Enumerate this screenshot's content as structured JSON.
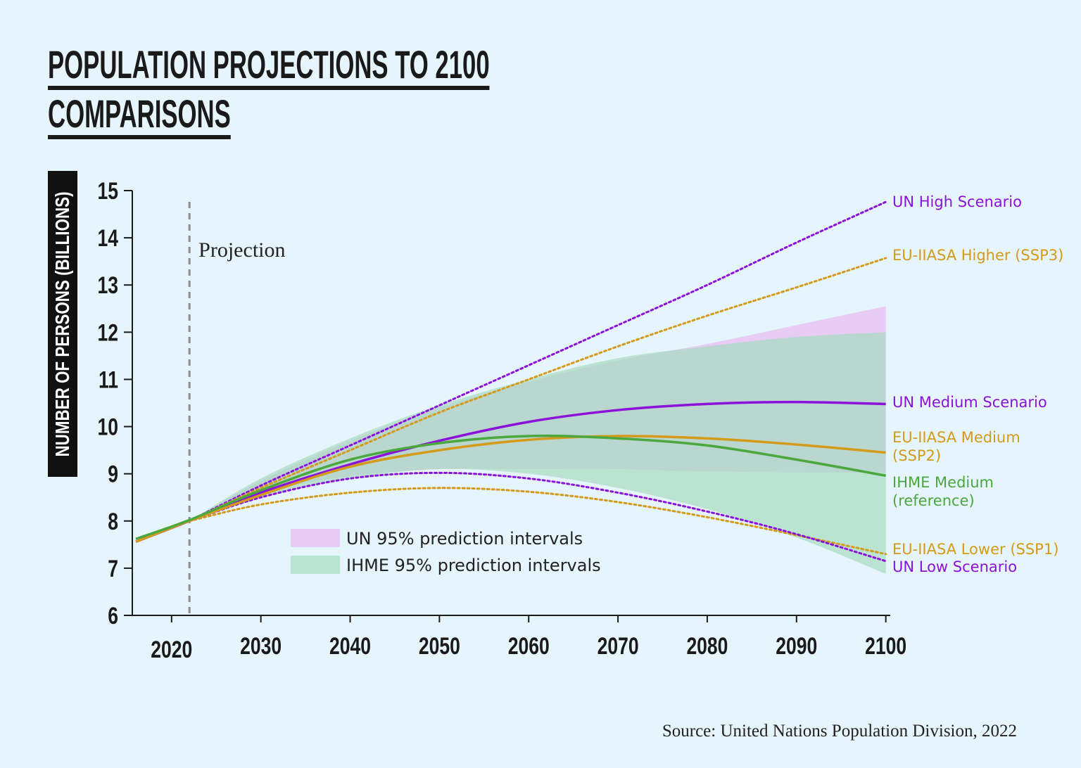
{
  "chart_data": {
    "type": "line",
    "title_lines": [
      "POPULATION PROJECTIONS TO 2100",
      "COMPARISONS"
    ],
    "y_label": "NUMBER OF PERSONS (BILLIONS)",
    "annotation": "Projection",
    "projection_start": 2022,
    "source": "Source: United Nations Population Division, 2022",
    "x": [
      2016,
      2022,
      2030,
      2040,
      2050,
      2060,
      2070,
      2080,
      2090,
      2100
    ],
    "xlim": [
      2015.6,
      2100.5
    ],
    "xticks": [
      2020,
      2030,
      2040,
      2050,
      2060,
      2070,
      2080,
      2090,
      2100
    ],
    "ylim": [
      6,
      15
    ],
    "yticks": [
      6,
      7,
      8,
      9,
      10,
      11,
      12,
      13,
      14,
      15
    ],
    "bands": [
      {
        "name": "UN 95% prediction intervals",
        "color": "#e8c4f4",
        "upper": [
          null,
          8.0,
          8.85,
          9.7,
          10.4,
          10.95,
          11.4,
          11.75,
          12.15,
          12.55
        ],
        "lower": [
          null,
          8.0,
          8.6,
          8.95,
          9.1,
          9.1,
          9.1,
          9.05,
          9.03,
          9.03
        ]
      },
      {
        "name": "IHME 95% prediction intervals",
        "color": "#a6dcbf",
        "upper": [
          null,
          8.0,
          8.9,
          9.75,
          10.45,
          11.0,
          11.45,
          11.7,
          11.9,
          12.0
        ],
        "lower": [
          null,
          8.0,
          8.5,
          8.9,
          9.1,
          9.0,
          8.7,
          8.25,
          7.65,
          6.88
        ]
      }
    ],
    "series": [
      {
        "name": "UN High Scenario",
        "color": "#8a12d9",
        "style": "dotted",
        "values": [
          null,
          8.0,
          8.75,
          9.6,
          10.45,
          11.3,
          12.15,
          13.0,
          13.9,
          14.76
        ]
      },
      {
        "name": "EU-IIASA Higher (SSP3)",
        "color": "#d49a1a",
        "style": "dotted",
        "values": [
          null,
          8.0,
          8.7,
          9.5,
          10.3,
          11.0,
          11.7,
          12.35,
          12.95,
          13.57
        ]
      },
      {
        "name": "UN Medium Scenario",
        "color": "#8a12d9",
        "style": "solid",
        "values": [
          7.56,
          8.0,
          8.6,
          9.2,
          9.7,
          10.1,
          10.35,
          10.48,
          10.52,
          10.48
        ]
      },
      {
        "name": "EU-IIASA Medium (SSP2)",
        "color": "#d49a1a",
        "style": "solid",
        "values": [
          7.56,
          8.0,
          8.55,
          9.15,
          9.5,
          9.72,
          9.8,
          9.75,
          9.62,
          9.45
        ]
      },
      {
        "name": "IHME Medium (reference)",
        "color": "#4aa83e",
        "style": "solid",
        "values": [
          7.62,
          8.02,
          8.65,
          9.3,
          9.65,
          9.8,
          9.75,
          9.6,
          9.3,
          8.96
        ]
      },
      {
        "name": "EU-IIASA Lower (SSP1)",
        "color": "#d49a1a",
        "style": "dotted",
        "values": [
          null,
          8.0,
          8.35,
          8.6,
          8.7,
          8.62,
          8.4,
          8.08,
          7.7,
          7.3
        ]
      },
      {
        "name": "UN Low Scenario",
        "color": "#8a12d9",
        "style": "dotted",
        "values": [
          null,
          8.0,
          8.5,
          8.9,
          9.02,
          8.9,
          8.6,
          8.2,
          7.72,
          7.15
        ]
      }
    ]
  }
}
